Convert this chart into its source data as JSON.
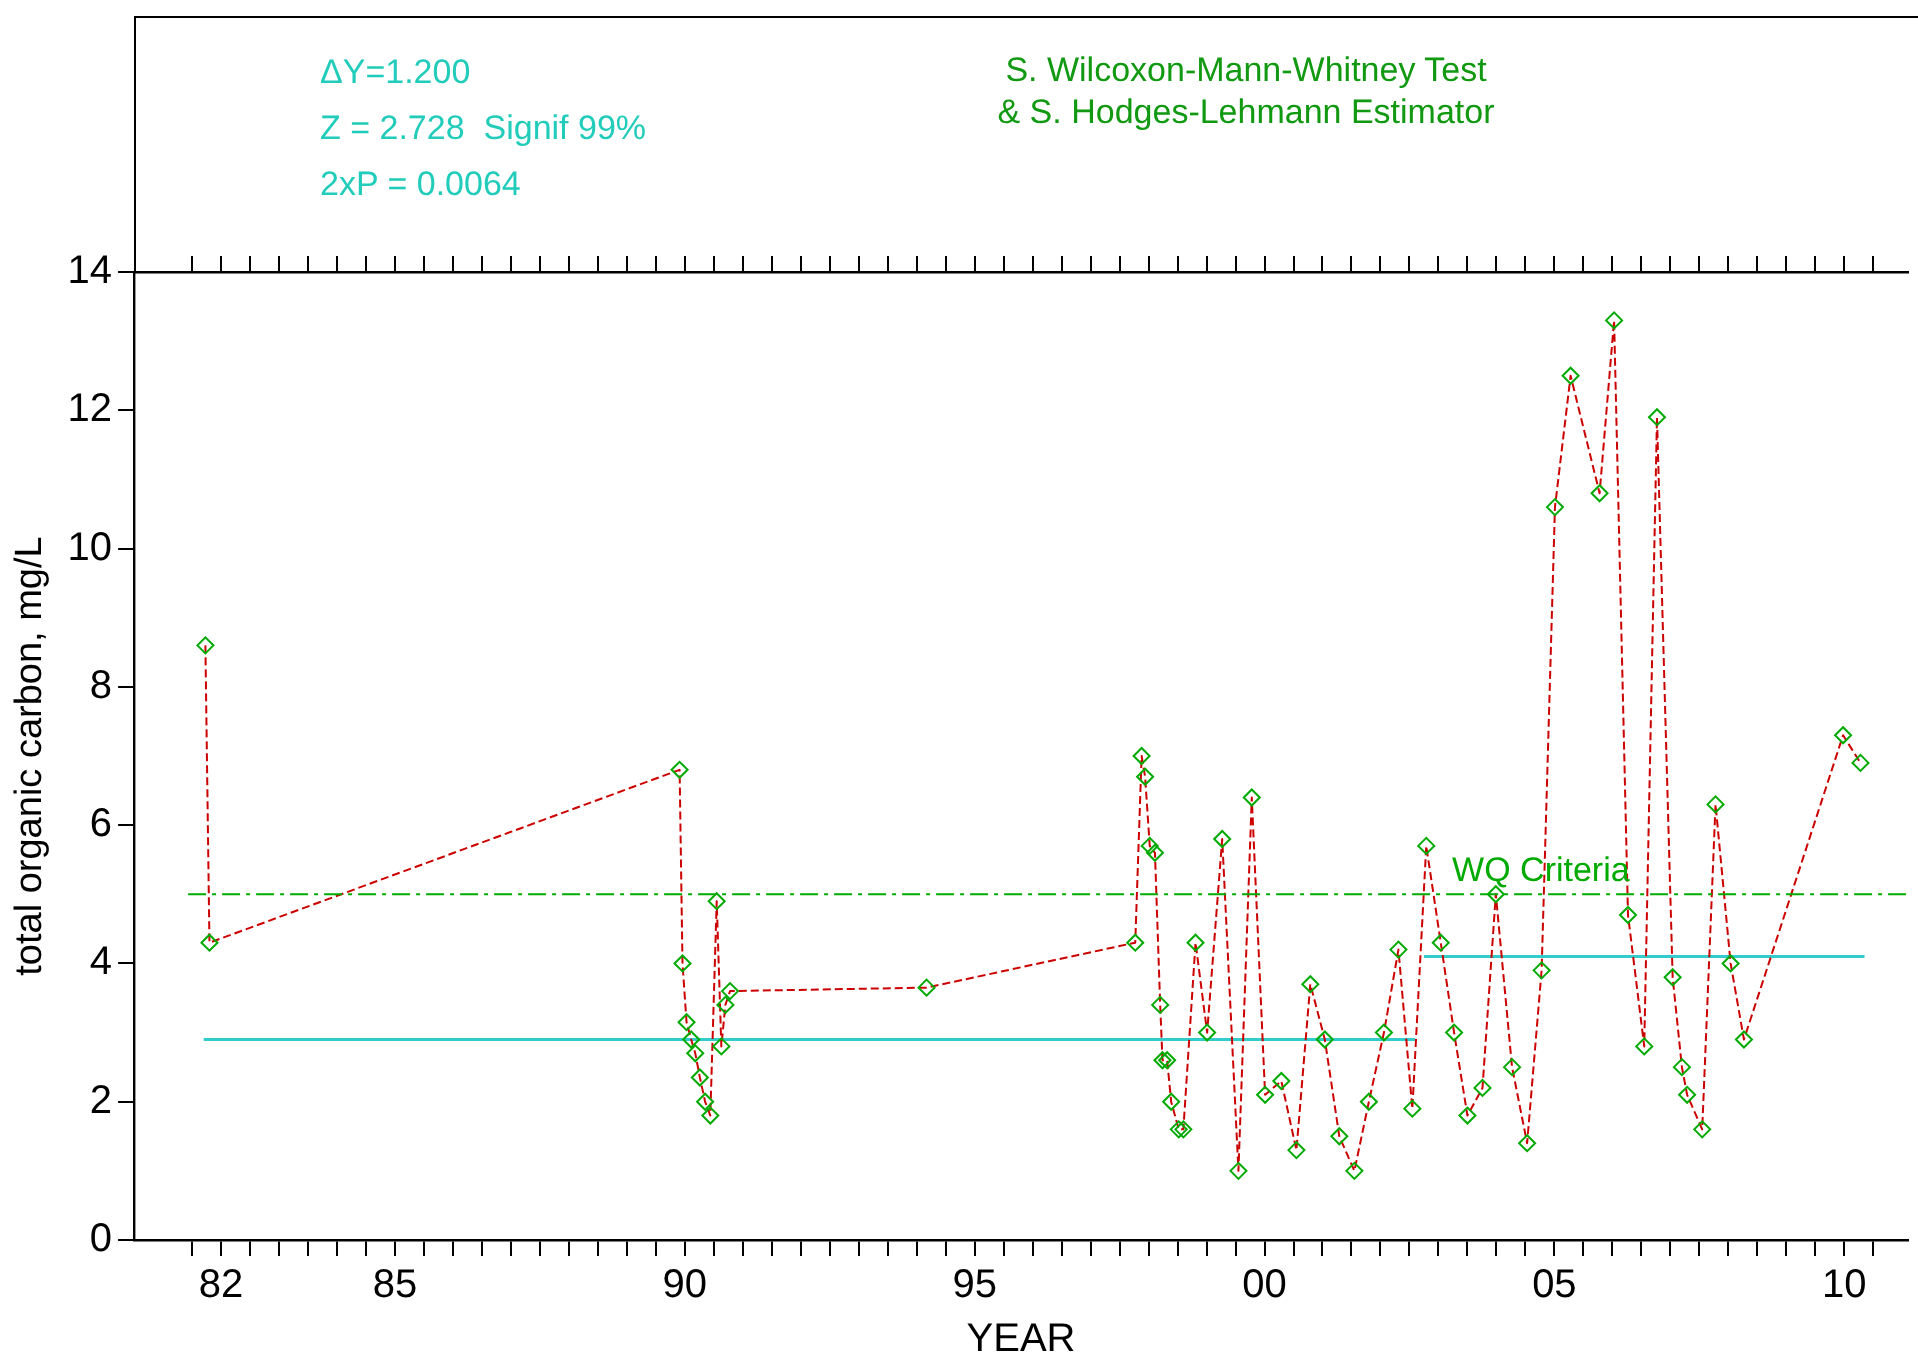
{
  "chart_data": {
    "type": "line",
    "xlabel": "YEAR",
    "ylabel": "total organic carbon, mg/L",
    "annotations": [
      "ΔY=1.200",
      "Z = 2.728  Signif 99%",
      "2xP = 0.0064",
      "S. Wilcoxon-Mann-Whitney Test",
      "& S. Hodges-Lehmann Estimator"
    ],
    "xlim": [
      1980.5,
      2011.1
    ],
    "xticks": [
      {
        "value": 1981.5,
        "label": null
      },
      {
        "value": 1982,
        "label": "82"
      },
      {
        "value": 1982.5,
        "label": null
      },
      {
        "value": 1983,
        "label": null
      },
      {
        "value": 1983.5,
        "label": null
      },
      {
        "value": 1984,
        "label": null
      },
      {
        "value": 1984.5,
        "label": null
      },
      {
        "value": 1985,
        "label": "85"
      },
      {
        "value": 1985.5,
        "label": null
      },
      {
        "value": 1986,
        "label": null
      },
      {
        "value": 1986.5,
        "label": null
      },
      {
        "value": 1987,
        "label": null
      },
      {
        "value": 1987.5,
        "label": null
      },
      {
        "value": 1988,
        "label": null
      },
      {
        "value": 1988.5,
        "label": null
      },
      {
        "value": 1989,
        "label": null
      },
      {
        "value": 1989.5,
        "label": null
      },
      {
        "value": 1990,
        "label": "90"
      },
      {
        "value": 1990.5,
        "label": null
      },
      {
        "value": 1991,
        "label": null
      },
      {
        "value": 1991.5,
        "label": null
      },
      {
        "value": 1992,
        "label": null
      },
      {
        "value": 1992.5,
        "label": null
      },
      {
        "value": 1993,
        "label": null
      },
      {
        "value": 1993.5,
        "label": null
      },
      {
        "value": 1994,
        "label": null
      },
      {
        "value": 1994.5,
        "label": null
      },
      {
        "value": 1995,
        "label": "95"
      },
      {
        "value": 1995.5,
        "label": null
      },
      {
        "value": 1996,
        "label": null
      },
      {
        "value": 1996.5,
        "label": null
      },
      {
        "value": 1997,
        "label": null
      },
      {
        "value": 1997.5,
        "label": null
      },
      {
        "value": 1998,
        "label": null
      },
      {
        "value": 1998.5,
        "label": null
      },
      {
        "value": 1999,
        "label": null
      },
      {
        "value": 1999.5,
        "label": null
      },
      {
        "value": 2000,
        "label": "00"
      },
      {
        "value": 2000.5,
        "label": null
      },
      {
        "value": 2001,
        "label": null
      },
      {
        "value": 2001.5,
        "label": null
      },
      {
        "value": 2002,
        "label": null
      },
      {
        "value": 2002.5,
        "label": null
      },
      {
        "value": 2003,
        "label": null
      },
      {
        "value": 2003.5,
        "label": null
      },
      {
        "value": 2004,
        "label": null
      },
      {
        "value": 2004.5,
        "label": null
      },
      {
        "value": 2005,
        "label": "05"
      },
      {
        "value": 2005.5,
        "label": null
      },
      {
        "value": 2006,
        "label": null
      },
      {
        "value": 2006.5,
        "label": null
      },
      {
        "value": 2007,
        "label": null
      },
      {
        "value": 2007.5,
        "label": null
      },
      {
        "value": 2008,
        "label": null
      },
      {
        "value": 2008.5,
        "label": null
      },
      {
        "value": 2009,
        "label": null
      },
      {
        "value": 2009.5,
        "label": null
      },
      {
        "value": 2010,
        "label": "10"
      },
      {
        "value": 2010.5,
        "label": null
      }
    ],
    "ylim": [
      0,
      14
    ],
    "yticks": [
      0,
      2,
      4,
      6,
      8,
      10,
      12,
      14
    ],
    "grid": false,
    "legend": false,
    "series": [
      {
        "color": "#cc0000",
        "marker": "diamond",
        "line_style": "dashed",
        "x": [
          1981.73,
          1981.8,
          1989.91,
          1989.96,
          1990.03,
          1990.11,
          1990.18,
          1990.26,
          1990.35,
          1990.44,
          1990.55,
          1990.63,
          1990.7,
          1990.78,
          1994.17,
          1997.77,
          1997.88,
          1997.94,
          1998.02,
          1998.11,
          1998.2,
          1998.24,
          1998.32,
          1998.39,
          1998.52,
          1998.6,
          1998.81,
          1999.01,
          1999.27,
          1999.55,
          1999.78,
          2000.01,
          2000.29,
          2000.55,
          2000.79,
          2001.04,
          2001.29,
          2001.55,
          2001.8,
          2002.06,
          2002.31,
          2002.55,
          2002.79,
          2003.04,
          2003.27,
          2003.5,
          2003.76,
          2003.99,
          2004.27,
          2004.53,
          2004.78,
          2005.01,
          2005.28,
          2005.78,
          2006.03,
          2006.27,
          2006.55,
          2006.77,
          2007.04,
          2007.2,
          2007.29,
          2007.55,
          2007.78,
          2008.04,
          2008.27,
          2009.98,
          2010.28
        ],
        "values": [
          8.6,
          4.3,
          6.8,
          4.0,
          3.15,
          2.9,
          2.7,
          2.35,
          2.0,
          1.8,
          4.9,
          2.8,
          3.4,
          3.6,
          3.65,
          4.3,
          7.0,
          6.7,
          5.7,
          5.6,
          3.4,
          2.6,
          2.6,
          2.0,
          1.6,
          1.6,
          4.3,
          3.0,
          5.8,
          1.0,
          6.4,
          2.1,
          2.3,
          1.3,
          3.7,
          2.9,
          1.5,
          1.0,
          2.0,
          3.0,
          4.2,
          1.9,
          5.7,
          4.3,
          3.0,
          1.8,
          2.2,
          5.0,
          2.5,
          1.4,
          3.9,
          10.6,
          12.5,
          10.8,
          13.3,
          4.7,
          2.8,
          11.9,
          3.8,
          2.5,
          2.1,
          1.6,
          6.3,
          4.0,
          2.9,
          7.3,
          6.9
        ]
      },
      {
        "color": "#33cccc",
        "marker": "none",
        "line_style": "solid",
        "x": [
          1981.7,
          2002.6
        ],
        "values": [
          2.9,
          2.9
        ]
      },
      {
        "color": "#33cccc",
        "marker": "none",
        "line_style": "solid",
        "x": [
          2002.75,
          2010.35
        ],
        "values": [
          4.1,
          4.1
        ]
      }
    ],
    "ref_lines": [
      {
        "axis": "y",
        "value": 5,
        "label": "WQ Criteria",
        "color": "#00aa00",
        "line_style": "dashed"
      }
    ]
  }
}
